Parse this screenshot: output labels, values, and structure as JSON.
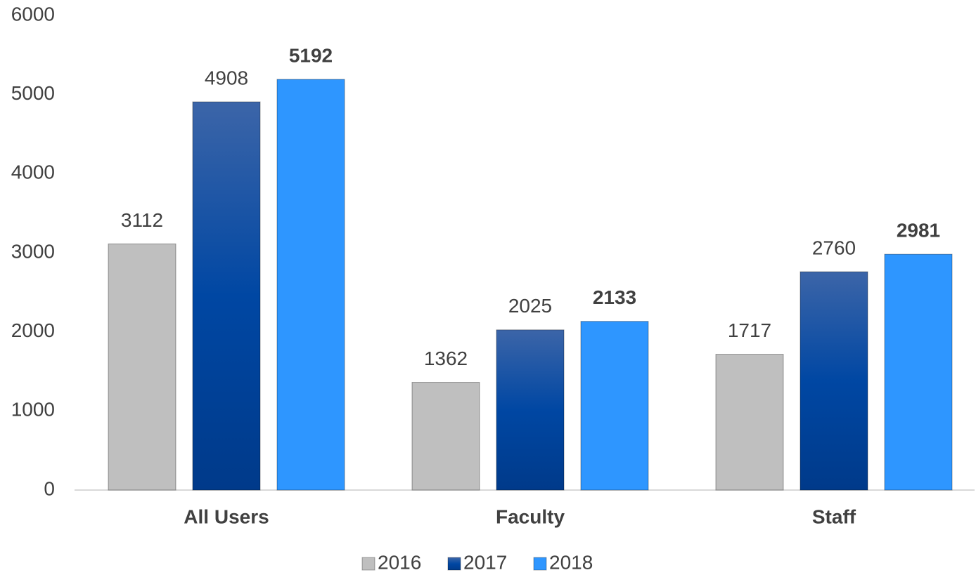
{
  "chart_data": {
    "type": "bar",
    "categories": [
      "All Users",
      "Faculty",
      "Staff"
    ],
    "series": [
      {
        "name": "2016",
        "color": "#bfbfbf",
        "values": [
          3112,
          1362,
          1717
        ]
      },
      {
        "name": "2017",
        "color": "#0047a3",
        "gradient": true,
        "values": [
          4908,
          2025,
          2760
        ]
      },
      {
        "name": "2018",
        "color": "#2e96ff",
        "label_bold": true,
        "values": [
          5192,
          2133,
          2981
        ]
      }
    ],
    "ylim": [
      0,
      6000
    ],
    "yticks": [
      0,
      1000,
      2000,
      3000,
      4000,
      5000,
      6000
    ],
    "legend": "bottom"
  }
}
